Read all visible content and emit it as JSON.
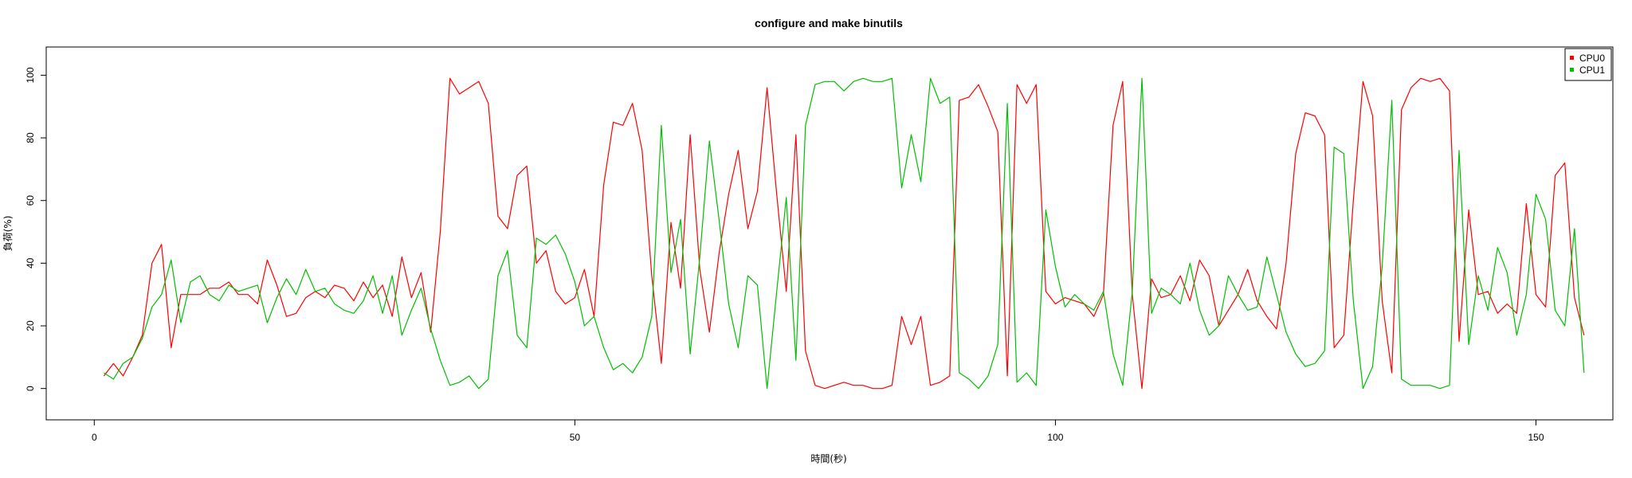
{
  "chart_data": {
    "type": "line",
    "title": "configure and make binutils",
    "xlabel": "時間(秒)",
    "ylabel": "負荷(%)",
    "xlim": [
      -5,
      158
    ],
    "ylim": [
      -10,
      109
    ],
    "xticks": [
      0,
      50,
      100,
      150
    ],
    "yticks": [
      0,
      20,
      40,
      60,
      80,
      100
    ],
    "legend_position": "top-right",
    "series": [
      {
        "name": "CPU0",
        "color": "#ff0000",
        "values": [
          4,
          8,
          4,
          10,
          17,
          40,
          46,
          13,
          30,
          30,
          30,
          32,
          32,
          34,
          30,
          30,
          27,
          41,
          33,
          23,
          24,
          29,
          31,
          29,
          33,
          32,
          28,
          34,
          29,
          33,
          23,
          42,
          29,
          37,
          18,
          50,
          99,
          94,
          96,
          98,
          91,
          55,
          51,
          68,
          71,
          40,
          44,
          31,
          27,
          29,
          38,
          23,
          65,
          85,
          84,
          91,
          76,
          36,
          8,
          53,
          32,
          81,
          38,
          18,
          43,
          62,
          76,
          51,
          63,
          96,
          62,
          31,
          81,
          12,
          1,
          0,
          1,
          2,
          1,
          1,
          0,
          0,
          1,
          23,
          14,
          23,
          1,
          2,
          4,
          92,
          93,
          97,
          90,
          82,
          4,
          97,
          91,
          97,
          31,
          27,
          29,
          28,
          27,
          23,
          30,
          84,
          98,
          30,
          0,
          35,
          29,
          30,
          36,
          28,
          41,
          36,
          20,
          25,
          30,
          38,
          28,
          23,
          19,
          40,
          75,
          88,
          87,
          81,
          13,
          17,
          60,
          98,
          87,
          28,
          5,
          89,
          96,
          99,
          98,
          99,
          95,
          15,
          57,
          30,
          31,
          24,
          27,
          24,
          59,
          30,
          26,
          68,
          72,
          29,
          17
        ]
      },
      {
        "name": "CPU1",
        "color": "#00bf00",
        "values": [
          5,
          3,
          8,
          10,
          16,
          26,
          30,
          41,
          21,
          34,
          36,
          30,
          28,
          33,
          31,
          32,
          33,
          21,
          29,
          35,
          30,
          38,
          31,
          32,
          27,
          25,
          24,
          28,
          36,
          24,
          36,
          17,
          25,
          32,
          19,
          9,
          1,
          2,
          4,
          0,
          3,
          36,
          44,
          17,
          13,
          48,
          46,
          49,
          43,
          34,
          20,
          23,
          13,
          6,
          8,
          5,
          10,
          23,
          84,
          37,
          54,
          11,
          42,
          79,
          54,
          27,
          13,
          36,
          33,
          0,
          31,
          61,
          9,
          84,
          97,
          98,
          98,
          95,
          98,
          99,
          98,
          98,
          99,
          64,
          81,
          66,
          99,
          91,
          93,
          5,
          3,
          0,
          4,
          14,
          91,
          2,
          5,
          1,
          57,
          39,
          26,
          30,
          27,
          25,
          31,
          11,
          1,
          31,
          99,
          24,
          32,
          30,
          27,
          40,
          25,
          17,
          20,
          36,
          30,
          25,
          26,
          42,
          30,
          18,
          11,
          7,
          8,
          12,
          77,
          75,
          28,
          0,
          7,
          39,
          92,
          3,
          1,
          1,
          1,
          0,
          1,
          76,
          14,
          36,
          25,
          45,
          37,
          17,
          30,
          62,
          54,
          25,
          20,
          51,
          5
        ]
      }
    ]
  }
}
